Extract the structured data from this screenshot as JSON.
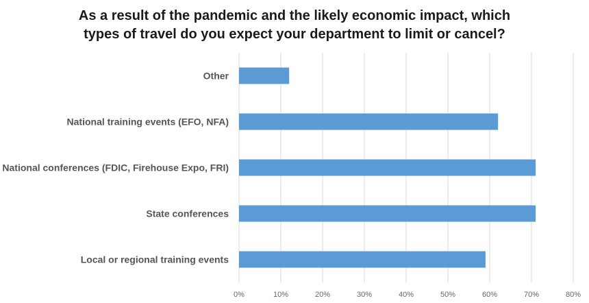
{
  "chart_data": {
    "type": "bar",
    "orientation": "horizontal",
    "title_lines": [
      "As a result of the pandemic and the likely economic impact, which",
      "types of travel do you expect your department to limit or cancel?"
    ],
    "categories": [
      "Other",
      "National training events (EFO, NFA)",
      "National conferences (FDIC, Firehouse Expo, FRI)",
      "State conferences",
      "Local or regional training events"
    ],
    "values": [
      12,
      62,
      71,
      71,
      59
    ],
    "value_unit": "%",
    "xlim": [
      0,
      80
    ],
    "x_ticks": [
      "0%",
      "10%",
      "20%",
      "30%",
      "40%",
      "50%",
      "60%",
      "70%",
      "80%"
    ],
    "xlabel": "",
    "ylabel": "",
    "grid": "vertical",
    "legend": "none",
    "bar_color": "#5b9bd5",
    "grid_color": "#d9d9d9"
  }
}
